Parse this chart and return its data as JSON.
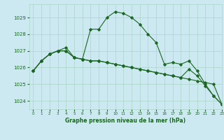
{
  "title": "Graphe pression niveau de la mer (hPa)",
  "background_color": "#cce8f0",
  "grid_color": "#aad4c8",
  "line_color": "#1a6622",
  "xlim": [
    -0.5,
    23
  ],
  "ylim": [
    1023.5,
    1029.8
  ],
  "yticks": [
    1024,
    1025,
    1026,
    1027,
    1028,
    1029
  ],
  "xticks": [
    0,
    1,
    2,
    3,
    4,
    5,
    6,
    7,
    8,
    9,
    10,
    11,
    12,
    13,
    14,
    15,
    16,
    17,
    18,
    19,
    20,
    21,
    22,
    23
  ],
  "series": [
    [
      1025.8,
      1026.4,
      1026.8,
      1027.0,
      1027.2,
      1026.6,
      1026.5,
      1028.3,
      1028.3,
      1029.0,
      1029.35,
      1029.25,
      1029.0,
      1028.6,
      1028.0,
      1027.5,
      1026.2,
      1026.3,
      1026.2,
      1026.4,
      1025.8,
      1025.0,
      1024.3,
      1023.8
    ],
    [
      1025.8,
      1026.4,
      1026.8,
      1027.0,
      1027.0,
      1026.6,
      1026.5,
      1026.4,
      1026.4,
      1026.3,
      1026.2,
      1026.1,
      1026.0,
      1025.9,
      1025.8,
      1025.7,
      1025.6,
      1025.5,
      1025.4,
      1025.9,
      1025.5,
      1024.9,
      1024.3,
      1023.8
    ],
    [
      1025.8,
      1026.4,
      1026.8,
      1027.0,
      1027.0,
      1026.6,
      1026.5,
      1026.4,
      1026.4,
      1026.3,
      1026.2,
      1026.1,
      1026.0,
      1025.9,
      1025.8,
      1025.7,
      1025.6,
      1025.5,
      1025.4,
      1025.3,
      1025.2,
      1025.1,
      1025.0,
      1023.8
    ]
  ]
}
